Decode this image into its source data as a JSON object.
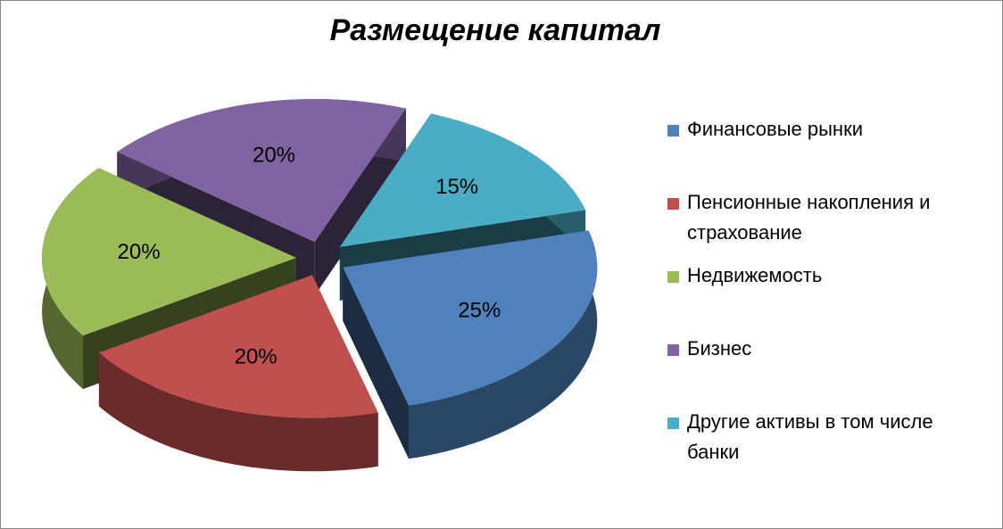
{
  "chart_data": {
    "type": "pie3d",
    "title": "Размещение капитал",
    "categories": [
      "Финансовые рынки",
      "Пенсионные накопления и страхование",
      "Недвижемость",
      "Бизнес",
      "Другие активы в том числе банки"
    ],
    "values": [
      25,
      20,
      20,
      20,
      15
    ],
    "value_labels": [
      "25%",
      "20%",
      "20%",
      "20%",
      "15%"
    ],
    "colors": [
      "#4f81bd",
      "#c0504d",
      "#9bbb59",
      "#8064a2",
      "#4bacc6"
    ],
    "legend": "right"
  }
}
